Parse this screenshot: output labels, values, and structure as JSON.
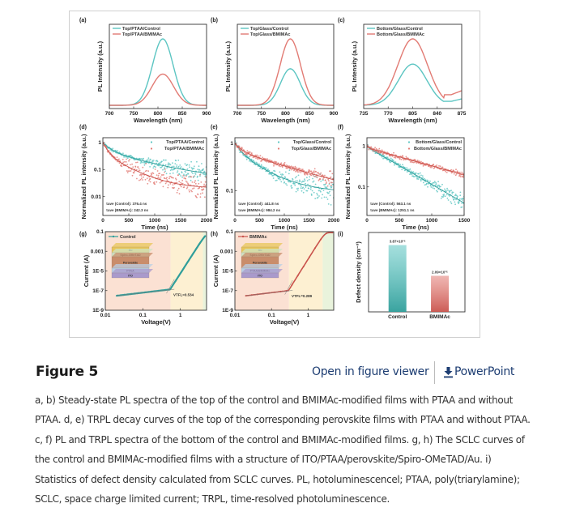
{
  "figure": {
    "title": "Figure 5",
    "open_viewer_label": "Open in figure viewer",
    "powerpoint_label": "PowerPoint",
    "download_icon": "download-arrow-icon",
    "caption_lines": [
      "a, b) Steady-state PL spectra of the top of the control and BMIMAc-modified films with PTAA and without",
      "PTAA. d, e) TRPL decay curves of the top of the corresponding perovskite films with PTAA and without PTAA.",
      "c, f) PL and TRPL spectra of the bottom of the control and BMIMAc-modified films. g, h) The SCLC curves of",
      "the control and BMIMAc-modified films with a structure of ITO/PTAA/perovskite/Spiro-OMeTAD/Au. i)",
      "Statistics of defect density calculated from SCLC curves. PL, hotoluminescencel; PTAA, poly(triarylamine);",
      "SCLC, space charge limited current; TRPL, time-resolved photoluminescence."
    ]
  },
  "colors": {
    "control": "#5cc5c2",
    "bmimac": "#e27b74",
    "control_dark": "#2f9e9a",
    "bmimac_dark": "#c9534c",
    "link": "#1d3d72",
    "region_ohmic": "#fbe1d3",
    "region_tfl": "#fdf0d2",
    "region_child": "#e9f3dc"
  },
  "chart_data": [
    {
      "panel": "(a)",
      "type": "line",
      "xlabel": "Wavelength (nm)",
      "ylabel": "PL Intensity (a.u.)",
      "xlim": [
        700,
        900
      ],
      "xticks": [
        700,
        750,
        800,
        850,
        900
      ],
      "series": [
        {
          "name": "Top/PTAA/Control",
          "peak_nm": 810,
          "peak_rel": 1.0,
          "fwhm_nm": 50,
          "color_key": "control"
        },
        {
          "name": "Top/PTAA/BMIMAc",
          "peak_nm": 810,
          "peak_rel": 0.47,
          "fwhm_nm": 52,
          "color_key": "bmimac"
        }
      ]
    },
    {
      "panel": "(b)",
      "type": "line",
      "xlabel": "Wavelength (nm)",
      "ylabel": "PL Intensity (a.u.)",
      "xlim": [
        700,
        900
      ],
      "xticks": [
        700,
        750,
        800,
        850,
        900
      ],
      "series": [
        {
          "name": "Top/Glass/Control",
          "peak_nm": 810,
          "peak_rel": 0.55,
          "fwhm_nm": 48,
          "color_key": "control"
        },
        {
          "name": "Top/Glass/BMIMAc",
          "peak_nm": 810,
          "peak_rel": 1.0,
          "fwhm_nm": 50,
          "color_key": "bmimac"
        }
      ]
    },
    {
      "panel": "(c)",
      "type": "line",
      "xlabel": "Wavelength (nm)",
      "ylabel": "PL Intensity (a.u.)",
      "xlim": [
        735,
        875
      ],
      "xticks": [
        735,
        770,
        805,
        840,
        875
      ],
      "series": [
        {
          "name": "Bottom/Glass/Control",
          "peak_nm": 805,
          "peak_rel": 0.62,
          "fwhm_nm": 48,
          "tail_rel": 0.12,
          "color_key": "control"
        },
        {
          "name": "Bottom/Glass/BMIMAc",
          "peak_nm": 805,
          "peak_rel": 1.0,
          "fwhm_nm": 50,
          "tail_rel": 0.2,
          "color_key": "bmimac"
        }
      ]
    },
    {
      "panel": "(d)",
      "type": "scatter",
      "xlabel": "Time (ns)",
      "ylabel": "Normalized PL intensity (a.u.)",
      "xlim": [
        0,
        2000
      ],
      "xticks": [
        0,
        500,
        1000,
        1500,
        2000
      ],
      "ylog": true,
      "ylim": [
        0.002,
        1.5
      ],
      "yticks": [
        "1",
        "0.1",
        "0.01"
      ],
      "ytick_values": [
        1,
        0.1,
        0.01
      ],
      "annotations": [
        "τave (Control): 376.4 ns",
        "τave (BMIMAc): 242.3 ns"
      ],
      "series": [
        {
          "name": "Top/PTAA/Control",
          "fit": {
            "a1": 0.45,
            "t1": 120,
            "a2": 0.5,
            "t2": 700,
            "floor": 0.045
          },
          "color_key": "control"
        },
        {
          "name": "Top/PTAA/BMIMAc",
          "fit": {
            "a1": 0.6,
            "t1": 90,
            "a2": 0.35,
            "t2": 400,
            "floor": 0.02
          },
          "color_key": "bmimac"
        }
      ]
    },
    {
      "panel": "(e)",
      "type": "scatter",
      "xlabel": "Time (ns)",
      "ylabel": "Normalized PL intensity (a.u.)",
      "xlim": [
        0,
        2000
      ],
      "xticks": [
        0,
        500,
        1000,
        1500,
        2000
      ],
      "ylog": true,
      "ylim": [
        0.03,
        1.3
      ],
      "yticks": [
        "1",
        "0.1"
      ],
      "ytick_values": [
        1,
        0.1
      ],
      "annotations": [
        "τave (Control): 441.8 ns",
        "τave (BMIMAc): 984.2 ns"
      ],
      "series": [
        {
          "name": "Top/Glass/Control",
          "fit": {
            "a1": 0.35,
            "t1": 150,
            "a2": 0.55,
            "t2": 550,
            "floor": 0.09
          },
          "color_key": "control"
        },
        {
          "name": "Top/Glass/BMIMAc",
          "fit": {
            "a1": 0.3,
            "t1": 150,
            "a2": 0.65,
            "t2": 1300,
            "floor": 0.03
          },
          "color_key": "bmimac"
        }
      ]
    },
    {
      "panel": "(f)",
      "type": "scatter",
      "xlabel": "Time (ns)",
      "ylabel": "Normalized PL intensity (a.u.)",
      "xlim": [
        0,
        1500
      ],
      "xticks": [
        0,
        500,
        1000,
        1500
      ],
      "ylog": true,
      "ylim": [
        0.02,
        1.6
      ],
      "yticks": [
        "1",
        "0.1"
      ],
      "ytick_values": [
        1,
        0.1
      ],
      "annotations": [
        "τave (Control): 563.1 ns",
        "τave (BMIMAc): 1251.1 ns"
      ],
      "series": [
        {
          "name": "Bottom/Glass/Control",
          "fit": {
            "a1": 0.0,
            "t1": 1,
            "a2": 0.95,
            "t2": 475,
            "floor": 0
          },
          "color_key": "control"
        },
        {
          "name": "Bottom/Glass/BMIMAc",
          "fit": {
            "a1": 0.0,
            "t1": 1,
            "a2": 0.9,
            "t2": 990,
            "floor": 0
          },
          "color_key": "bmimac"
        }
      ]
    },
    {
      "panel": "(g)",
      "type": "line",
      "xlabel": "Voltage(V)",
      "ylabel": "Current (A)",
      "xlog": true,
      "xlim": [
        0.01,
        5
      ],
      "xticks": [
        "0.01",
        "0.1",
        "1"
      ],
      "xtick_values": [
        0.01,
        0.1,
        1
      ],
      "ylog": true,
      "ylim": [
        1e-09,
        0.1
      ],
      "yticks": [
        "0.1",
        "0.001",
        "1E-5",
        "1E-7",
        "1E-9"
      ],
      "ytick_values": [
        0.1,
        0.001,
        1e-05,
        1e-07,
        1e-09
      ],
      "vtfl_label": "VTFL=0.534",
      "vtfl": 0.534,
      "regions_v": [
        0.55,
        4.0
      ],
      "inset_layers": [
        "Au",
        "Spiro-OMeTAD",
        "Perovskite",
        "PTAA",
        "ITO"
      ],
      "series": [
        {
          "name": "Control",
          "color_key": "control_dark"
        }
      ]
    },
    {
      "panel": "(h)",
      "type": "line",
      "xlabel": "Voltage(V)",
      "ylabel": "Current (A)",
      "xlog": true,
      "xlim": [
        0.01,
        5
      ],
      "xticks": [
        "0.01",
        "0.1",
        "1"
      ],
      "xtick_values": [
        0.01,
        0.1,
        1
      ],
      "ylog": true,
      "ylim": [
        1e-09,
        0.1
      ],
      "yticks": [
        "0.1",
        "0.001",
        "1E-5",
        "1E-7",
        "1E-9"
      ],
      "ytick_values": [
        0.1,
        0.001,
        1e-05,
        1e-07,
        1e-09
      ],
      "vtfl_label": "VTFL=0.289",
      "vtfl": 0.289,
      "regions_v": [
        0.3,
        2.5
      ],
      "inset_layers": [
        "Au",
        "Spiro-OMeTAD",
        "Perovskite",
        "PTAA/BMIMAc",
        "ITO"
      ],
      "series": [
        {
          "name": "BMIMAc",
          "color_key": "bmimac_dark"
        }
      ]
    },
    {
      "panel": "(i)",
      "type": "bar",
      "ylabel": "Defect density (cm⁻³)",
      "categories": [
        "Control",
        "BMIMAc"
      ],
      "values": [
        3870000000000000.0,
        2090000000000000.0
      ],
      "value_labels": [
        "3.87×10¹⁵",
        "2.09×10¹⁵"
      ],
      "ylim": [
        0,
        4600000000000000.0
      ]
    }
  ]
}
